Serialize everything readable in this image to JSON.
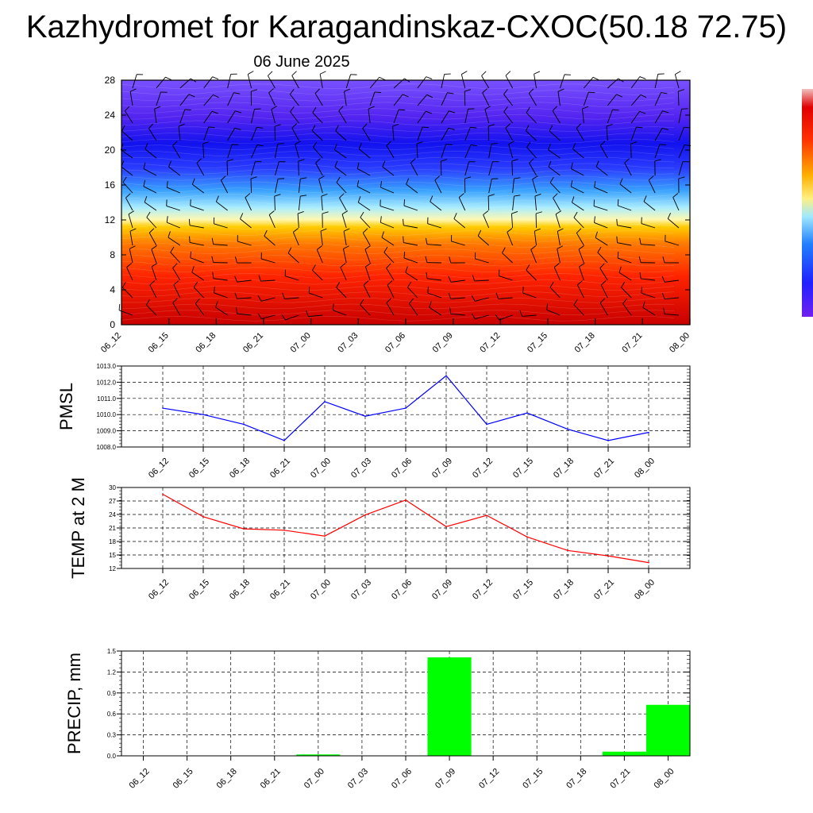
{
  "title": "Kazhydromet for Karagandinskaz-CXOC(50.18 72.75)",
  "subtitle": "06 June 2025",
  "chart_data": [
    {
      "type": "heatmap",
      "categories": [
        "06_12",
        "06_15",
        "06_18",
        "06_21",
        "07_00",
        "07_03",
        "07_06",
        "07_09",
        "07_12",
        "07_15",
        "07_18",
        "07_21",
        "08_00"
      ],
      "yticks": [
        0,
        4,
        8,
        12,
        16,
        20,
        24,
        28
      ],
      "ylim": [
        0,
        28
      ],
      "colors": [
        "#cc0000",
        "#ff2000",
        "#ff7a00",
        "#ffd000",
        "#fff7a0",
        "#9fe6ff",
        "#3aa6ff",
        "#2040ff",
        "#1010f0",
        "#5a20f0",
        "#7a50ff"
      ],
      "grid": false
    },
    {
      "type": "line",
      "ylabel": "PMSL",
      "categories": [
        "06_12",
        "06_15",
        "06_18",
        "06_21",
        "07_00",
        "07_03",
        "07_06",
        "07_09",
        "07_12",
        "07_15",
        "07_18",
        "07_21",
        "08_00"
      ],
      "yticks": [
        "1008.0",
        "1009.0",
        "1010.0",
        "1011.0",
        "1012.0",
        "1013.0"
      ],
      "ylim": [
        1008,
        1013
      ],
      "series": [
        {
          "values": [
            1010.4,
            1010.0,
            1009.4,
            1008.4,
            1010.8,
            1009.9,
            1010.4,
            1012.4,
            1009.4,
            1010.1,
            1009.1,
            1008.4,
            1008.9
          ],
          "color": "#0000ff"
        }
      ],
      "grid": true
    },
    {
      "type": "line",
      "ylabel": "TEMP at 2 M",
      "categories": [
        "06_12",
        "06_15",
        "06_18",
        "06_21",
        "07_00",
        "07_03",
        "07_06",
        "07_09",
        "07_12",
        "07_15",
        "07_18",
        "07_21",
        "08_00"
      ],
      "yticks": [
        "12",
        "15",
        "18",
        "21",
        "24",
        "27",
        "30"
      ],
      "ylim": [
        12,
        30
      ],
      "series": [
        {
          "values": [
            28.5,
            23.5,
            20.8,
            20.5,
            19.2,
            23.9,
            27.2,
            21.3,
            23.8,
            19.0,
            16.0,
            14.8,
            13.3
          ],
          "color": "#ff0000"
        }
      ],
      "grid": true
    },
    {
      "type": "bar",
      "ylabel": "PRECIP, mm",
      "categories": [
        "06_12",
        "06_15",
        "06_18",
        "06_21",
        "07_00",
        "07_03",
        "07_06",
        "07_09",
        "07_12",
        "07_15",
        "07_18",
        "07_21",
        "08_00"
      ],
      "yticks": [
        "0.0",
        "0.3",
        "0.6",
        "0.9",
        "1.2",
        "1.5"
      ],
      "ylim": [
        0,
        1.5
      ],
      "values": [
        0,
        0,
        0,
        0,
        0.02,
        0,
        0,
        1.41,
        0,
        0,
        0,
        0.06,
        0.73
      ],
      "color": "#00ff00",
      "grid": true
    }
  ]
}
